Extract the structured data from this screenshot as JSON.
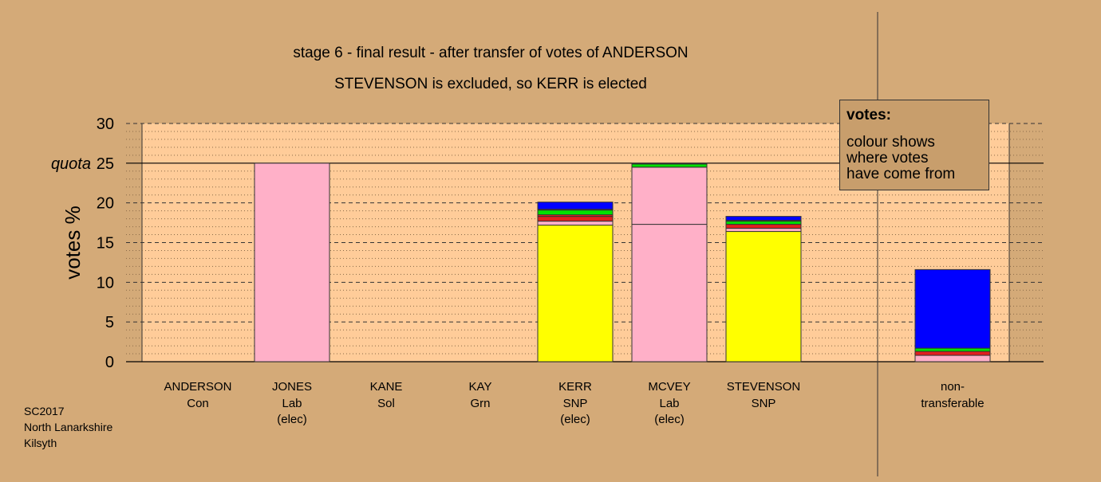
{
  "chart_data": {
    "type": "bar",
    "stacked": true,
    "title": "stage 6 - final result - after transfer of votes of ANDERSON",
    "subtitle": "STEVENSON is excluded, so KERR is elected",
    "ylabel": "votes %",
    "ylim": [
      0,
      30
    ],
    "yticks": [
      "0",
      "5",
      "10",
      "15",
      "20",
      "25",
      "30"
    ],
    "quota": {
      "label": "quota",
      "value": 25
    },
    "categories": [
      {
        "name": "ANDERSON",
        "party": "Con",
        "status": ""
      },
      {
        "name": "JONES",
        "party": "Lab",
        "status": "(elec)"
      },
      {
        "name": "KANE",
        "party": "Sol",
        "status": ""
      },
      {
        "name": "KAY",
        "party": "Grn",
        "status": ""
      },
      {
        "name": "KERR",
        "party": "SNP",
        "status": "(elec)"
      },
      {
        "name": "MCVEY",
        "party": "Lab",
        "status": "(elec)"
      },
      {
        "name": "STEVENSON",
        "party": "SNP",
        "status": ""
      },
      {
        "name": "non-",
        "party": "transferable",
        "status": ""
      }
    ],
    "stacks": [
      [],
      [
        {
          "color": "#ffb0c8",
          "value": 25.0
        }
      ],
      [],
      [],
      [
        {
          "color": "#ffff00",
          "value": 17.2
        },
        {
          "color": "#ffb0c8",
          "value": 0.5
        },
        {
          "color": "#e0201e",
          "value": 0.6
        },
        {
          "color": "#ff2020",
          "value": 0.2
        },
        {
          "color": "#00e000",
          "value": 0.6
        },
        {
          "color": "#ffff00",
          "value": 0.1
        },
        {
          "color": "#0000ff",
          "value": 0.9
        }
      ],
      [
        {
          "color": "#ffb0c8",
          "value": 17.3
        },
        {
          "color": "#ffb0c8",
          "value": 7.2
        },
        {
          "color": "#00e000",
          "value": 0.4
        },
        {
          "color": "#0000ff",
          "value": 0.1
        }
      ],
      [
        {
          "color": "#ffff00",
          "value": 16.4
        },
        {
          "color": "#ffb0c8",
          "value": 0.4
        },
        {
          "color": "#e0201e",
          "value": 0.5
        },
        {
          "color": "#00e000",
          "value": 0.4
        },
        {
          "color": "#ffff00",
          "value": 0.1
        },
        {
          "color": "#0000ff",
          "value": 0.5
        }
      ],
      [
        {
          "color": "#ffb0c8",
          "value": 0.8
        },
        {
          "color": "#e0201e",
          "value": 0.5
        },
        {
          "color": "#00e000",
          "value": 0.4
        },
        {
          "color": "#0000ff",
          "value": 9.9
        }
      ]
    ],
    "grid": true,
    "legend": {
      "position": "top-right",
      "title": "votes:",
      "lines": [
        "colour shows",
        "where votes",
        "have come from"
      ]
    }
  },
  "colors": {
    "background": "#d4aa78",
    "plot_area": "#ffcc99",
    "side_panel": "#ffcc99",
    "legend_box": "#c89e6c"
  },
  "source": [
    "SC2017",
    "North Lanarkshire",
    "Kilsyth"
  ]
}
